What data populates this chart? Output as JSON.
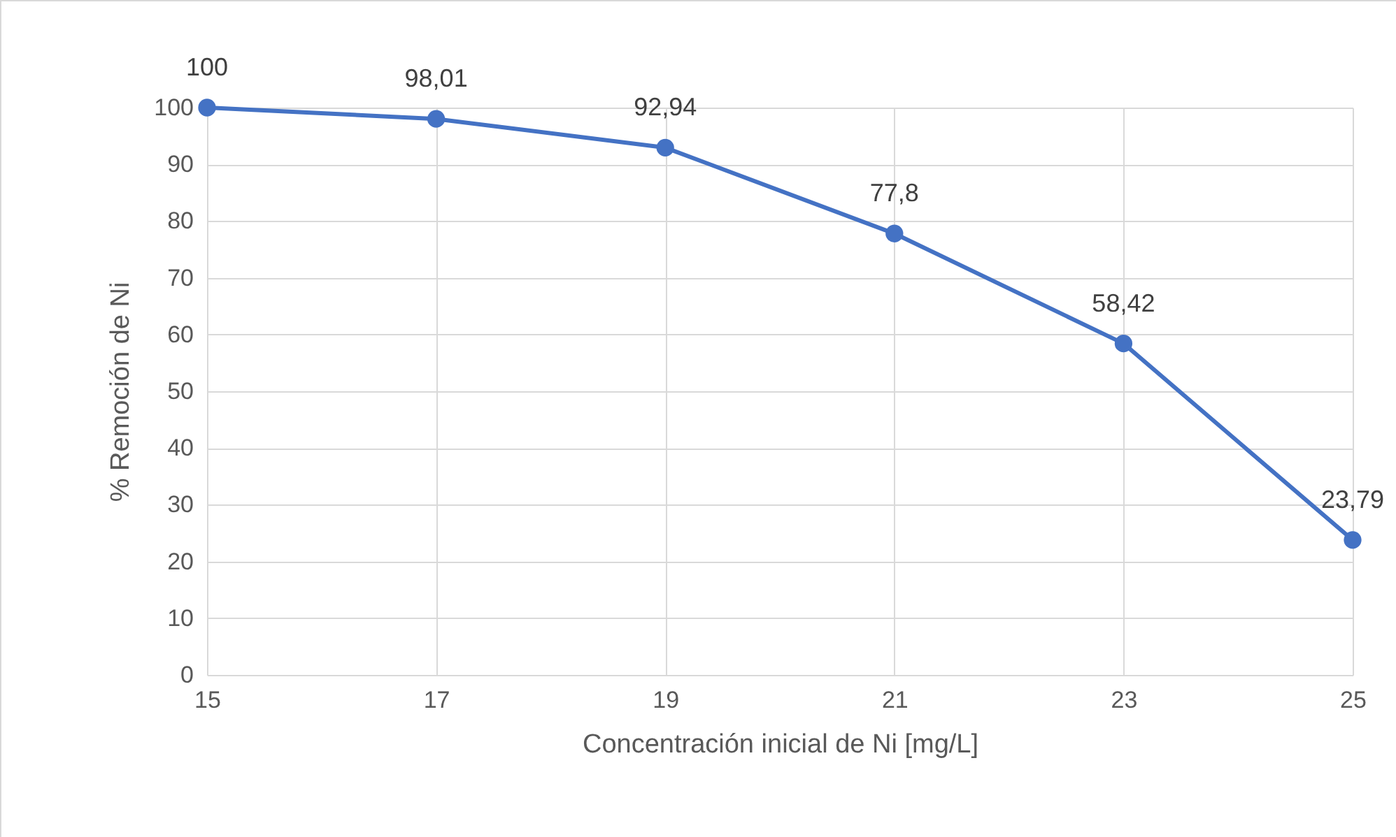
{
  "chart_data": {
    "type": "line",
    "xlabel": "Concentración inicial de Ni [mg/L]",
    "ylabel": "% Remoción de Ni",
    "x": [
      15,
      17,
      19,
      21,
      23,
      25
    ],
    "series": [
      {
        "color": "#4472c4",
        "values": [
          100,
          98.01,
          92.94,
          77.8,
          58.42,
          23.79
        ],
        "value_labels": [
          "100",
          "98,01",
          "92,94",
          "77,8",
          "58,42",
          "23,79"
        ]
      }
    ],
    "xlim": [
      15,
      25
    ],
    "xticks": [
      15,
      17,
      19,
      21,
      23,
      25
    ],
    "ylim": [
      0,
      100
    ],
    "yticks": [
      0,
      10,
      20,
      30,
      40,
      50,
      60,
      70,
      80,
      90,
      100
    ],
    "grid": true,
    "marker": "circle",
    "line_style": "solid"
  }
}
